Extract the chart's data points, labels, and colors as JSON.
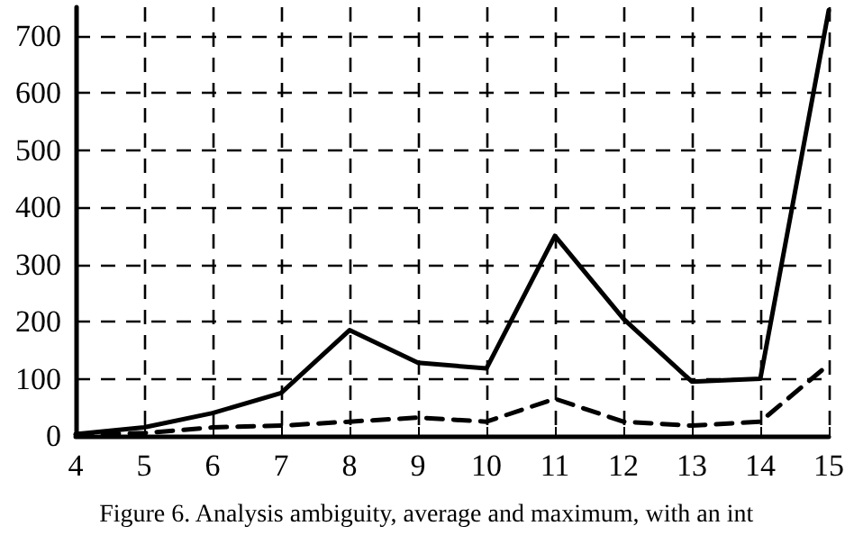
{
  "chart_data": {
    "type": "line",
    "x": [
      4,
      5,
      6,
      7,
      8,
      9,
      10,
      11,
      12,
      13,
      14,
      15
    ],
    "series": [
      {
        "color": "#000000",
        "line_style": "solid",
        "values": [
          3,
          15,
          40,
          75,
          185,
          128,
          118,
          350,
          205,
          95,
          100,
          745
        ]
      },
      {
        "color": "#000000",
        "line_style": "dashed",
        "values": [
          2,
          5,
          15,
          18,
          25,
          32,
          25,
          65,
          25,
          18,
          25,
          125
        ]
      }
    ],
    "xlim": [
      4,
      15
    ],
    "xticks": [
      4,
      5,
      6,
      7,
      8,
      9,
      10,
      11,
      12,
      13,
      14,
      15
    ],
    "ylim": [
      0,
      750
    ],
    "yticks": [
      0,
      100,
      200,
      300,
      400,
      500,
      600,
      700
    ],
    "grid": true,
    "marker": "none",
    "annotations": [
      "Figure 6. Analysis ambiguity, average and maximum, with an int"
    ]
  }
}
